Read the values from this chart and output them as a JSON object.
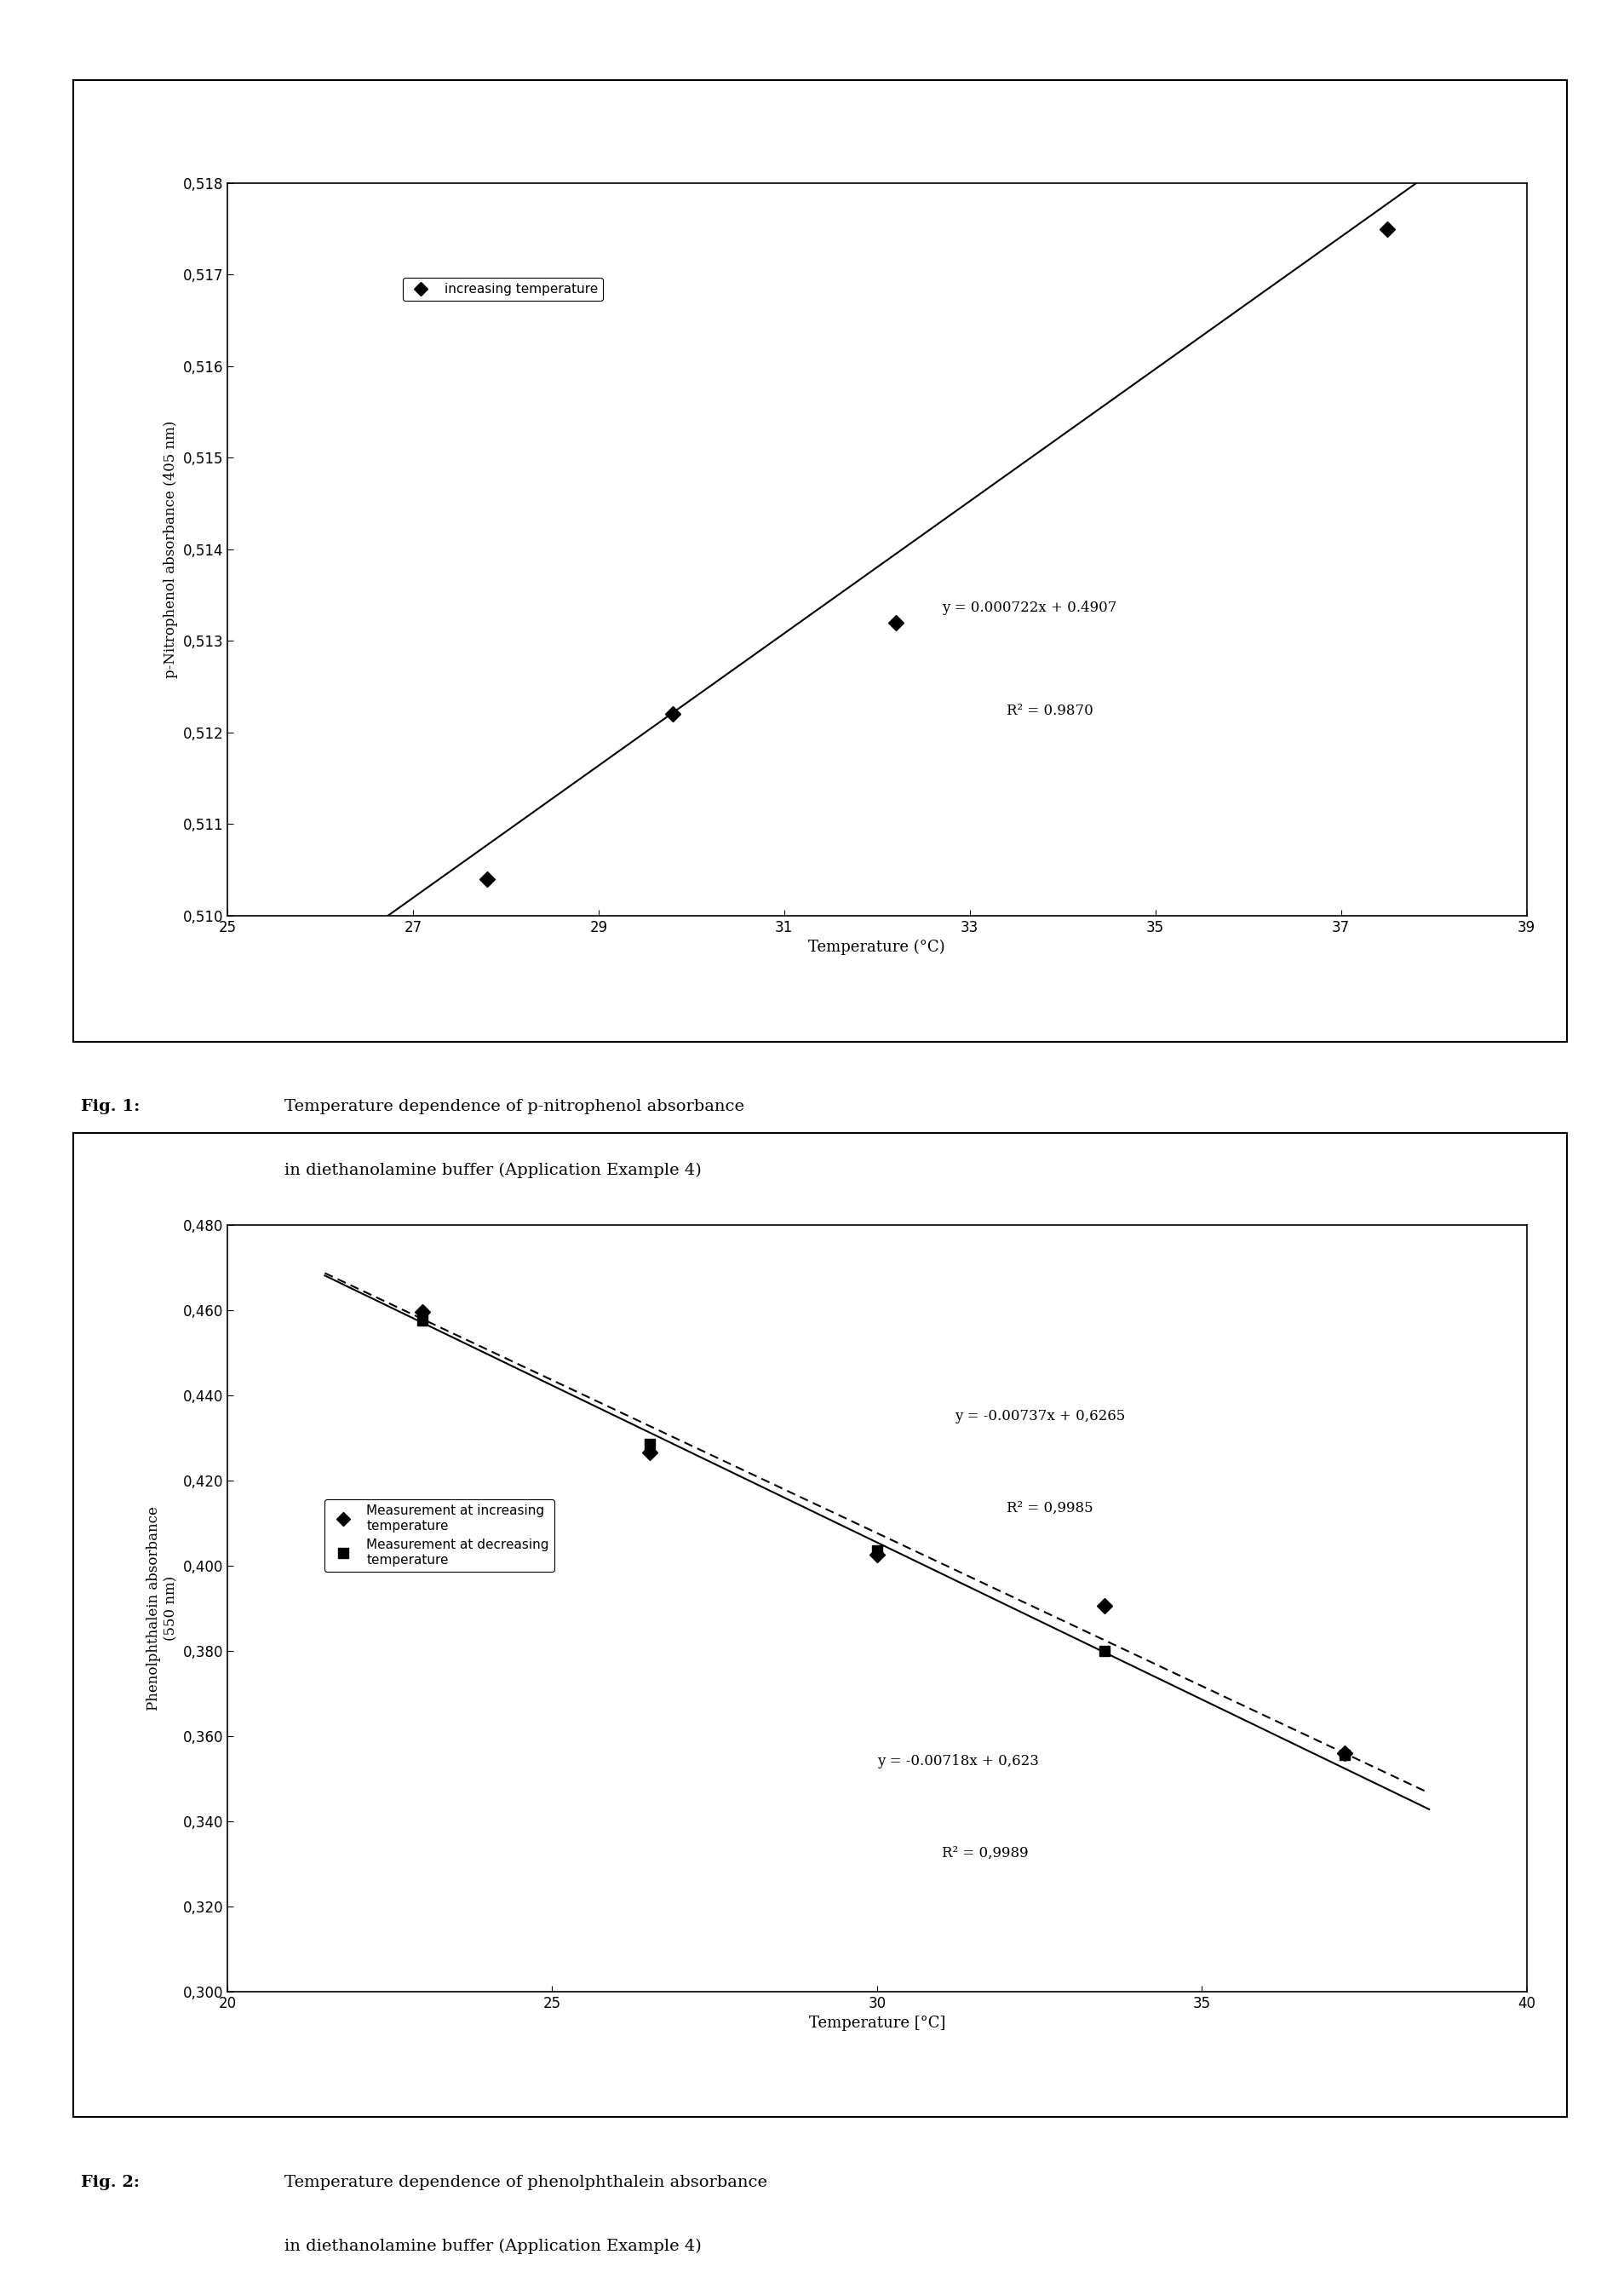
{
  "fig1": {
    "fig_label": "Fig. 1:",
    "caption_line1": "Temperature dependence of p-nitrophenol absorbance",
    "caption_line2": "in diethanolamine buffer (Application Example 4)",
    "xlabel": "Temperature (°C)",
    "ylabel": "p-Nitrophenol absorbance (405 nm)",
    "xlim": [
      25,
      39
    ],
    "ylim": [
      0.51,
      0.518
    ],
    "xticks": [
      25,
      27,
      29,
      31,
      33,
      35,
      37,
      39
    ],
    "yticks": [
      0.51,
      0.511,
      0.512,
      0.513,
      0.514,
      0.515,
      0.516,
      0.517,
      0.518
    ],
    "data_x": [
      27.8,
      29.8,
      32.2,
      37.5
    ],
    "data_y": [
      0.5104,
      0.5122,
      0.5132,
      0.5175
    ],
    "trend_x0": 26.5,
    "trend_x1": 38.2,
    "slope": 0.000722,
    "intercept": 0.4907,
    "equation": "y = 0.000722x + 0.4907",
    "r_squared": "R² = 0.9870",
    "legend_label": "increasing temperature",
    "marker": "D",
    "color": "black",
    "linecolor": "black"
  },
  "fig2": {
    "fig_label": "Fig. 2:",
    "caption_line1": "Temperature dependence of phenolphthalein absorbance",
    "caption_line2": "in diethanolamine buffer (Application Example 4)",
    "xlabel": "Temperature [°C]",
    "ylabel": "Phenolphthalein absorbance\n(550 nm)",
    "xlim": [
      20,
      40
    ],
    "ylim": [
      0.3,
      0.48
    ],
    "xticks": [
      20,
      25,
      30,
      35,
      40
    ],
    "yticks": [
      0.3,
      0.32,
      0.34,
      0.36,
      0.38,
      0.4,
      0.42,
      0.44,
      0.46,
      0.48
    ],
    "data1_x": [
      23.0,
      26.5,
      30.0,
      33.5,
      37.2
    ],
    "data1_y": [
      0.4595,
      0.4265,
      0.4025,
      0.3905,
      0.356
    ],
    "data2_x": [
      23.0,
      26.5,
      30.0,
      33.5,
      37.2
    ],
    "data2_y": [
      0.4575,
      0.4285,
      0.4035,
      0.38,
      0.3555
    ],
    "slope1": -0.00737,
    "intercept1": 0.6265,
    "slope2": -0.00718,
    "intercept2": 0.623,
    "trend_x0": 21.5,
    "trend_x1": 38.5,
    "eq1": "y = -0.00737x + 0,6265",
    "r1": "R² = 0,9985",
    "eq2": "y = -0.00718x + 0,623",
    "r2": "R² = 0,9989",
    "legend1": "Measurement at increasing\ntemperature",
    "legend2": "Measurement at decreasing\ntemperature",
    "marker1": "D",
    "marker2": "s",
    "color1": "black",
    "color2": "black"
  },
  "background_color": "#ffffff"
}
